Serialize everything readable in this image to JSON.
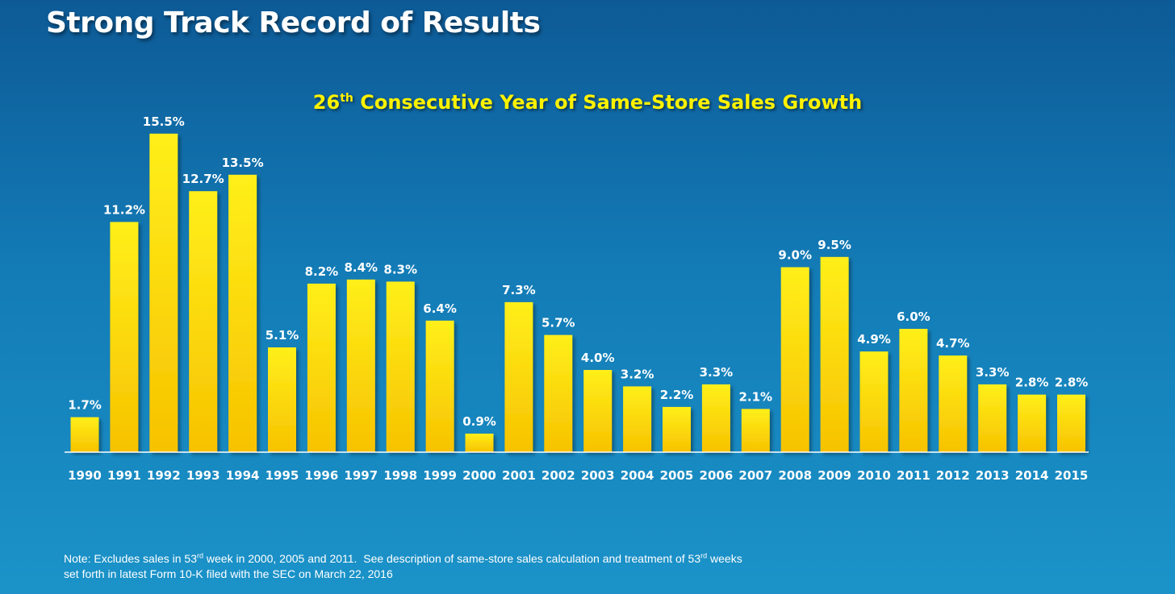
{
  "title": "Strong Track Record of Results",
  "subtitle": {
    "prefix": "26",
    "ordinal": "th",
    "rest": " Consecutive Year of Same-Store Sales Growth"
  },
  "colors": {
    "bar_top": "#ffef1a",
    "bar_bottom": "#f7c200",
    "axis": "#ffffff",
    "subtitle": "#fff200"
  },
  "note": {
    "line1_a": "Note: Excludes sales in 53",
    "line1_sup1": "rd",
    "line1_b": " week in 2000, 2005 and 2011.  See description of same-store sales calculation and treatment of 53",
    "line1_sup2": "rd",
    "line1_c": " weeks",
    "line2": "set forth in latest Form 10-K filed with the SEC on March 22, 2016"
  },
  "chart_data": {
    "type": "bar",
    "title": "26th Consecutive Year of Same-Store Sales Growth",
    "xlabel": "",
    "ylabel": "",
    "ylim": [
      0,
      16
    ],
    "grid": false,
    "legend": "none",
    "categories": [
      "1990",
      "1991",
      "1992",
      "1993",
      "1994",
      "1995",
      "1996",
      "1997",
      "1998",
      "1999",
      "2000",
      "2001",
      "2002",
      "2003",
      "2004",
      "2005",
      "2006",
      "2007",
      "2008",
      "2009",
      "2010",
      "2011",
      "2012",
      "2013",
      "2014",
      "2015"
    ],
    "values": [
      1.7,
      11.2,
      15.5,
      12.7,
      13.5,
      5.1,
      8.2,
      8.4,
      8.3,
      6.4,
      0.9,
      7.3,
      5.7,
      4.0,
      3.2,
      2.2,
      3.3,
      2.1,
      9.0,
      9.5,
      4.9,
      6.0,
      4.7,
      3.3,
      2.8,
      2.8
    ],
    "value_labels": [
      "1.7%",
      "11.2%",
      "15.5%",
      "12.7%",
      "13.5%",
      "5.1%",
      "8.2%",
      "8.4%",
      "8.3%",
      "6.4%",
      "0.9%",
      "7.3%",
      "5.7%",
      "4.0%",
      "3.2%",
      "2.2%",
      "3.3%",
      "2.1%",
      "9.0%",
      "9.5%",
      "4.9%",
      "6.0%",
      "4.7%",
      "3.3%",
      "2.8%",
      "2.8%"
    ]
  }
}
